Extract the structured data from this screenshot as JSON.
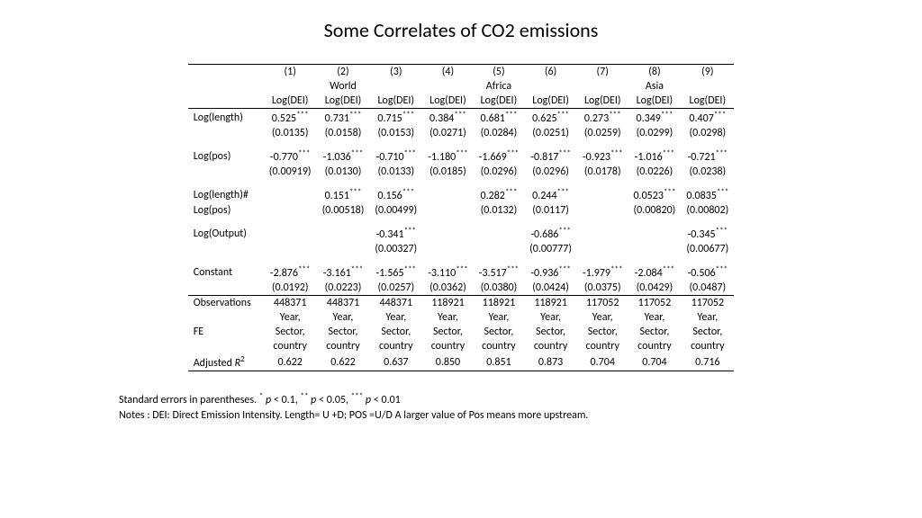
{
  "title": "Some Correlates of CO2 emissions",
  "col_nums": [
    "(1)",
    "(2)",
    "(3)",
    "(4)",
    "(5)",
    "(6)",
    "(7)",
    "(8)",
    "(9)"
  ],
  "groups": {
    "g2": "World",
    "g5": "Africa",
    "g8": "Asia"
  },
  "depvar": "Log(DEI)",
  "rows": {
    "loglength": {
      "label": "Log(length)",
      "coef": [
        "0.525***",
        "0.731***",
        "0.715***",
        "0.384***",
        "0.681***",
        "0.625***",
        "0.273***",
        "0.349***",
        "0.407***"
      ],
      "se": [
        "(0.0135)",
        "(0.0158)",
        "(0.0153)",
        "(0.0271)",
        "(0.0284)",
        "(0.0251)",
        "(0.0259)",
        "(0.0299)",
        "(0.0298)"
      ]
    },
    "logpos": {
      "label": "Log(pos)",
      "coef": [
        "-0.770***",
        "-1.036***",
        "-0.710***",
        "-1.180***",
        "-1.669***",
        "-0.817***",
        "-0.923***",
        "-1.016***",
        "-0.721***"
      ],
      "se": [
        "(0.00919)",
        "(0.0130)",
        "(0.0133)",
        "(0.0185)",
        "(0.0296)",
        "(0.0296)",
        "(0.0178)",
        "(0.0226)",
        "(0.0238)"
      ]
    },
    "interact": {
      "label1": "Log(length)#",
      "label2": "Log(pos)",
      "coef": [
        "",
        "0.151***",
        "0.156***",
        "",
        "0.282***",
        "0.244***",
        "",
        "0.0523***",
        "0.0835***"
      ],
      "se": [
        "",
        "(0.00518)",
        "(0.00499)",
        "",
        "(0.0132)",
        "(0.0117)",
        "",
        "(0.00820)",
        "(0.00802)"
      ]
    },
    "logoutput": {
      "label": "Log(Output)",
      "coef": [
        "",
        "",
        "-0.341***",
        "",
        "",
        "-0.686***",
        "",
        "",
        "-0.345***"
      ],
      "se": [
        "",
        "",
        "(0.00327)",
        "",
        "",
        "(0.00777)",
        "",
        "",
        "(0.00677)"
      ]
    },
    "constant": {
      "label": "Constant",
      "coef": [
        "-2.876***",
        "-3.161***",
        "-1.565***",
        "-3.110***",
        "-3.517***",
        "-0.936***",
        "-1.979***",
        "-2.084***",
        "-0.506***"
      ],
      "se": [
        "(0.0192)",
        "(0.0223)",
        "(0.0257)",
        "(0.0362)",
        "(0.0380)",
        "(0.0424)",
        "(0.0375)",
        "(0.0429)",
        "(0.0487)"
      ]
    }
  },
  "obs": {
    "label": "Observations",
    "vals": [
      "448371",
      "448371",
      "448371",
      "118921",
      "118921",
      "118921",
      "117052",
      "117052",
      "117052"
    ]
  },
  "fe": {
    "label": "FE",
    "l1": "Year,",
    "l2": "Sector,",
    "l3": "country"
  },
  "r2": {
    "label": "Adjusted R²",
    "vals": [
      "0.622",
      "0.622",
      "0.637",
      "0.850",
      "0.851",
      "0.873",
      "0.704",
      "0.704",
      "0.716"
    ]
  },
  "notes": {
    "line1": "Standard errors in parentheses. * p < 0.1, ** p < 0.05, *** p < 0.01",
    "line2": "Notes : DEI: Direct Emission Intensity. Length= U +D; POS =U/D A larger value of Pos means more upstream."
  },
  "styling": {
    "font_family": "Calibri",
    "title_fontsize": 22,
    "table_fontsize": 12,
    "text_color": "#000000",
    "background": "#ffffff",
    "rule_color": "#000000"
  }
}
